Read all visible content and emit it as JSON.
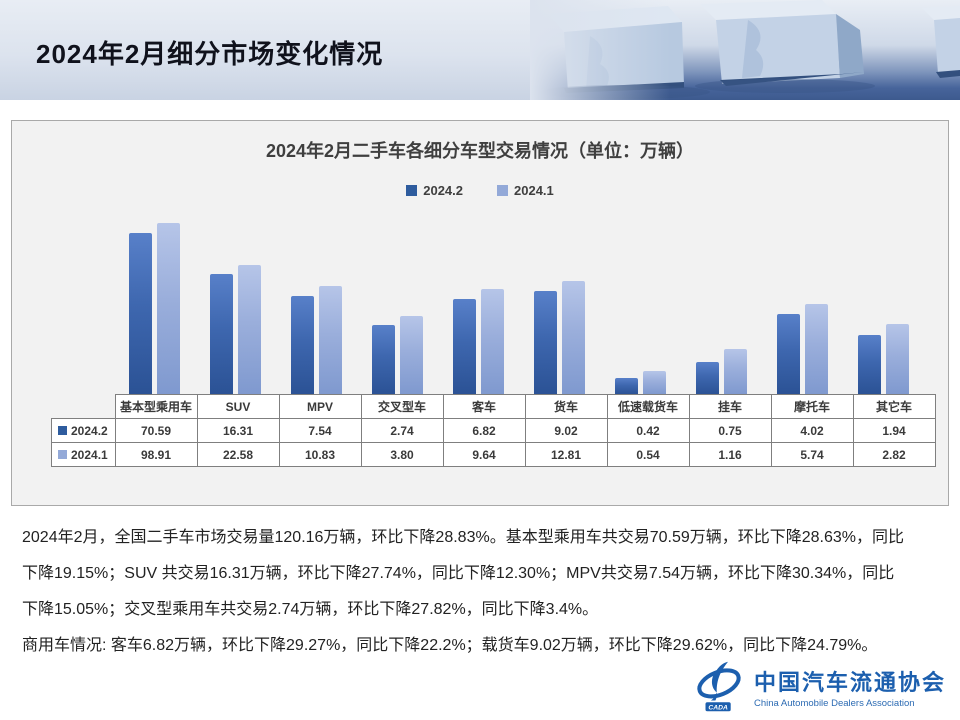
{
  "header": {
    "title": "2024年2月细分市场变化情况"
  },
  "chart_data": {
    "type": "bar",
    "title": "2024年2月二手车各细分车型交易情况（单位：万辆）",
    "unit": "万辆",
    "categories": [
      "基本型乘用车",
      "SUV",
      "MPV",
      "交叉型车",
      "客车",
      "货车",
      "低速载货车",
      "挂车",
      "摩托车",
      "其它车"
    ],
    "series": [
      {
        "name": "2024.2",
        "values": [
          70.59,
          16.31,
          7.54,
          2.74,
          6.82,
          9.02,
          0.42,
          0.75,
          4.02,
          1.94
        ]
      },
      {
        "name": "2024.1",
        "values": [
          98.91,
          22.58,
          10.83,
          3.8,
          9.64,
          12.81,
          0.54,
          1.16,
          5.74,
          2.82
        ]
      }
    ],
    "value_format": "2dp",
    "scale": "log",
    "legend_position": "top",
    "grid": false,
    "data_table_shown": true
  },
  "colors": {
    "series_dark": "#2E5C9E",
    "series_light": "#93A9D8",
    "plot_background": "#F2F2F2",
    "logo_blue": "#1C5FAE"
  },
  "body": {
    "lines": [
      "2024年2月，全国二手车市场交易量120.16万辆，环比下降28.83%。基本型乘用车共交易70.59万辆，环比下降28.63%，同比",
      "下降19.15%；SUV 共交易16.31万辆，环比下降27.74%，同比下降12.30%；MPV共交易7.54万辆，环比下降30.34%，同比",
      "下降15.05%；交叉型乘用车共交易2.74万辆，环比下降27.82%，同比下降3.4%。",
      "商用车情况: 客车6.82万辆，环比下降29.27%，同比下降22.2%；载货车9.02万辆，环比下降29.62%，同比下降24.79%。"
    ]
  },
  "footer": {
    "logo_abbr": "CADA",
    "logo_cn": "中国汽车流通协会",
    "logo_en": "China Automobile Dealers Association"
  }
}
